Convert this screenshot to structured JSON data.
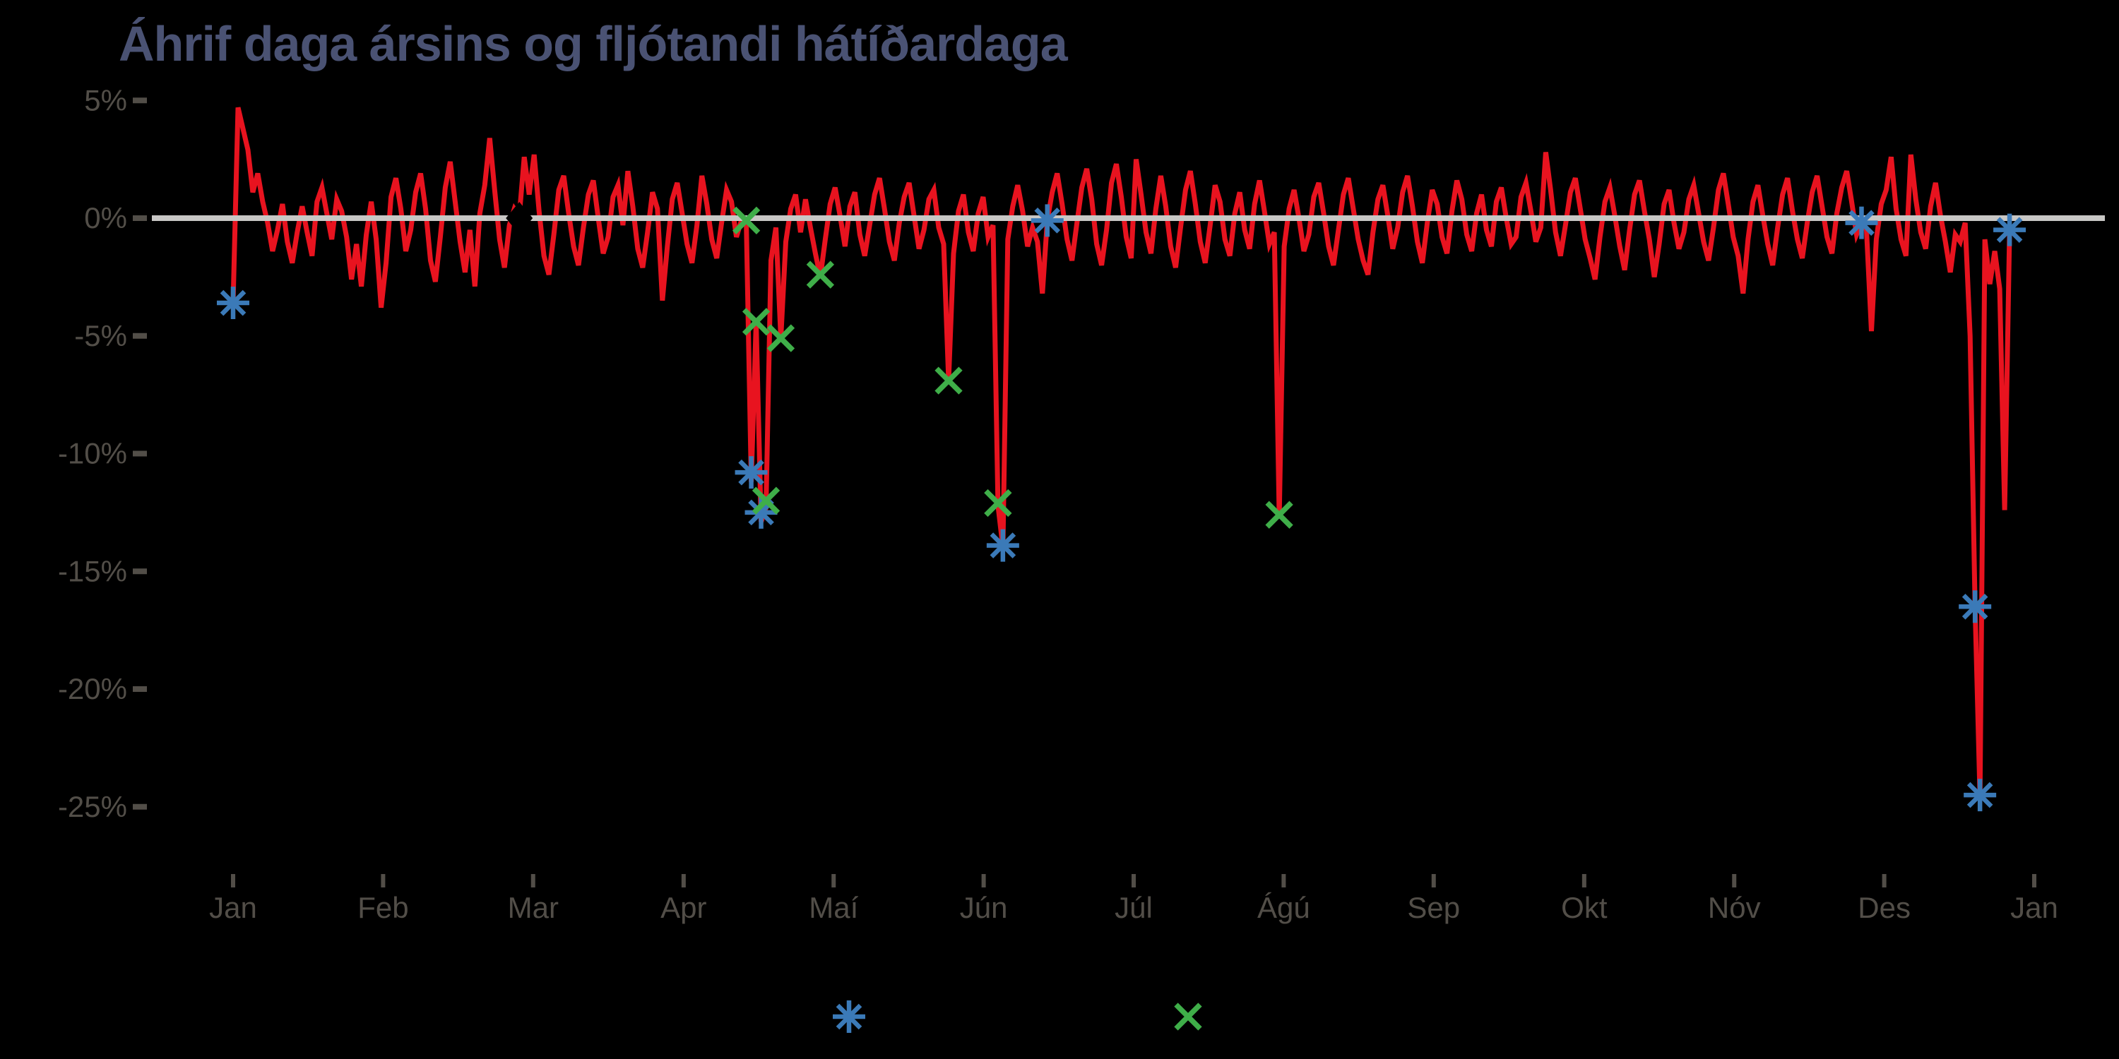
{
  "chart_data": {
    "type": "line",
    "title": "Áhrif daga ársins og fljótandi hátíðardaga",
    "background_color": "#000000",
    "title_color": "#4a5273",
    "axis_text_color": "#524e48",
    "zero_line_color": "#c8c7c5",
    "grid": false,
    "legend_position": "bottom-center",
    "y_axis": {
      "unit": "%",
      "tick_labels": [
        "5%",
        "0%",
        "-5%",
        "-10%",
        "-15%",
        "-20%",
        "-25%"
      ],
      "tick_values": [
        5,
        0,
        -5,
        -10,
        -15,
        -20,
        -25
      ],
      "ylim": [
        -27,
        6
      ]
    },
    "x_axis": {
      "tick_labels": [
        "Jan",
        "Feb",
        "Mar",
        "Apr",
        "Maí",
        "Jún",
        "Júl",
        "Ágú",
        "Sep",
        "Okt",
        "Nóv",
        "Des",
        "Jan"
      ],
      "tick_days": [
        0,
        30.4,
        60.8,
        91.3,
        121.7,
        152.1,
        182.5,
        212.9,
        243.3,
        273.8,
        304.2,
        334.6,
        365
      ],
      "xlim_days": [
        0,
        365
      ]
    },
    "series": [
      {
        "name": "day-of-year-effect",
        "type": "line",
        "color": "#e8131f",
        "start_day": 0,
        "step_days": 1,
        "values": [
          -3.6,
          4.7,
          3.8,
          2.9,
          1.1,
          1.9,
          0.7,
          -0.2,
          -1.4,
          -0.5,
          0.6,
          -1.0,
          -1.9,
          -0.6,
          0.5,
          -0.6,
          -1.6,
          0.7,
          1.3,
          0.2,
          -0.9,
          0.8,
          0.3,
          -0.8,
          -2.6,
          -1.1,
          -2.9,
          -0.7,
          0.7,
          -0.9,
          -3.8,
          -1.9,
          0.9,
          1.7,
          0.4,
          -1.4,
          -0.5,
          1.1,
          1.9,
          0.4,
          -1.8,
          -2.7,
          -0.8,
          1.3,
          2.4,
          0.7,
          -1.0,
          -2.3,
          -0.5,
          -2.9,
          0.2,
          1.4,
          3.4,
          1.2,
          -0.9,
          -2.1,
          -0.3,
          0.4,
          0.1,
          2.6,
          1.0,
          2.7,
          0.3,
          -1.6,
          -2.4,
          -0.7,
          1.2,
          1.8,
          0.2,
          -1.2,
          -2.0,
          -0.4,
          1.0,
          1.6,
          0.0,
          -1.5,
          -0.8,
          0.9,
          1.4,
          -0.3,
          2.0,
          0.5,
          -1.3,
          -2.1,
          -0.6,
          1.1,
          0.4,
          -3.5,
          -1.2,
          0.8,
          1.5,
          0.2,
          -1.1,
          -1.9,
          -0.3,
          1.8,
          0.6,
          -0.9,
          -1.7,
          -0.2,
          1.2,
          0.7,
          -0.8,
          -0.1,
          -0.2,
          -11.2,
          -4.4,
          -12.9,
          -12.3,
          -1.8,
          -0.4,
          -5.1,
          -1.0,
          0.4,
          1.0,
          -0.6,
          0.8,
          -0.4,
          -1.5,
          -2.5,
          -0.9,
          0.6,
          1.3,
          0.1,
          -1.2,
          0.5,
          1.1,
          -0.7,
          -1.6,
          -0.3,
          1.0,
          1.7,
          0.4,
          -1.0,
          -1.8,
          -0.2,
          0.9,
          1.5,
          0.1,
          -1.3,
          -0.5,
          0.8,
          1.2,
          -0.4,
          -1.1,
          -6.9,
          -1.5,
          0.3,
          1.0,
          -0.6,
          -1.4,
          0.2,
          0.9,
          -0.8,
          -0.3,
          -12.2,
          -14.0,
          -0.9,
          0.5,
          1.4,
          0.3,
          -1.2,
          -0.4,
          -1.0,
          -3.2,
          -0.1,
          1.1,
          1.9,
          0.6,
          -0.9,
          -1.8,
          -0.2,
          1.3,
          2.1,
          0.8,
          -1.1,
          -2.0,
          -0.5,
          1.5,
          2.3,
          0.9,
          -0.8,
          -1.7,
          2.5,
          1.0,
          -0.6,
          -1.5,
          0.4,
          1.8,
          0.5,
          -1.2,
          -2.1,
          -0.4,
          1.2,
          2.0,
          0.6,
          -1.0,
          -1.9,
          -0.3,
          1.4,
          0.7,
          -0.9,
          -1.6,
          0.2,
          1.1,
          -0.5,
          -1.3,
          0.6,
          1.6,
          0.3,
          -1.1,
          -0.6,
          -12.7,
          -1.2,
          0.4,
          1.2,
          0.0,
          -1.4,
          -0.7,
          0.9,
          1.5,
          0.2,
          -1.2,
          -2.0,
          -0.5,
          1.0,
          1.7,
          0.4,
          -0.9,
          -1.8,
          -2.4,
          -0.6,
          0.8,
          1.4,
          0.1,
          -1.3,
          -0.4,
          1.1,
          1.8,
          0.5,
          -1.0,
          -1.9,
          -0.2,
          1.2,
          0.6,
          -0.8,
          -1.5,
          0.3,
          1.6,
          0.8,
          -0.7,
          -1.4,
          0.2,
          1.0,
          -0.5,
          -1.2,
          0.7,
          1.3,
          0.0,
          -1.1,
          -0.8,
          0.9,
          1.5,
          0.3,
          -1.0,
          -0.4,
          2.8,
          1.2,
          -0.6,
          -1.6,
          -0.3,
          1.1,
          1.7,
          0.4,
          -0.9,
          -1.7,
          -2.6,
          -0.8,
          0.7,
          1.3,
          0.1,
          -1.2,
          -2.2,
          -0.5,
          1.0,
          1.6,
          0.3,
          -0.9,
          -2.5,
          -1.1,
          0.6,
          1.2,
          -0.2,
          -1.3,
          -0.6,
          0.8,
          1.4,
          0.2,
          -1.0,
          -1.8,
          -0.4,
          1.2,
          1.9,
          0.6,
          -0.8,
          -1.6,
          -3.2,
          -0.9,
          0.7,
          1.4,
          0.1,
          -1.1,
          -2.0,
          -0.4,
          1.0,
          1.7,
          0.3,
          -0.9,
          -1.7,
          -0.2,
          1.1,
          1.8,
          0.5,
          -0.8,
          -1.5,
          0.2,
          1.3,
          2.0,
          0.7,
          -0.7,
          -0.2,
          -0.5,
          -4.8,
          -0.9,
          0.6,
          1.2,
          2.6,
          0.4,
          -0.9,
          -1.6,
          2.7,
          0.8,
          -0.6,
          -1.3,
          0.5,
          1.5,
          0.1,
          -1.0,
          -2.3,
          -0.7,
          -1.0,
          -0.2,
          -5.0,
          -16.5,
          -24.6,
          -0.9,
          -2.8,
          -1.4,
          -3.0,
          -12.4,
          -0.5
        ]
      },
      {
        "name": "fixed-date-day-markers",
        "type": "scatter",
        "marker": "asterisk",
        "color": "#3b7ab8",
        "points": [
          [
            0,
            -3.6
          ],
          [
            105,
            -10.8
          ],
          [
            107,
            -12.5
          ],
          [
            156,
            -13.9
          ],
          [
            165,
            -0.1
          ],
          [
            330,
            -0.2
          ],
          [
            353,
            -16.5
          ],
          [
            354,
            -24.5
          ],
          [
            360,
            -0.5
          ]
        ]
      },
      {
        "name": "floating-holiday-markers",
        "type": "scatter",
        "marker": "x",
        "color": "#3fae49",
        "points": [
          [
            104,
            -0.1
          ],
          [
            106,
            -4.4
          ],
          [
            108,
            -12.0
          ],
          [
            111,
            -5.1
          ],
          [
            119,
            -2.4
          ],
          [
            145,
            -6.9
          ],
          [
            155,
            -12.1
          ],
          [
            212,
            -12.6
          ]
        ]
      },
      {
        "name": "zero-line-diamond-marker",
        "type": "scatter",
        "marker": "diamond",
        "color": "#000000",
        "points": [
          [
            58,
            0.0
          ]
        ]
      }
    ],
    "legend": {
      "entries": [
        {
          "marker": "asterisk",
          "color": "#3b7ab8",
          "label": ""
        },
        {
          "marker": "x",
          "color": "#3fae49",
          "label": ""
        }
      ]
    }
  }
}
